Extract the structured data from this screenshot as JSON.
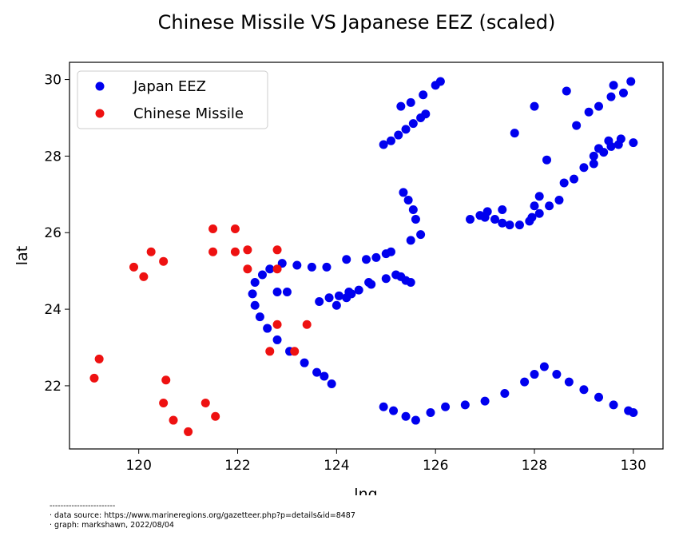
{
  "chart_data": {
    "type": "scatter",
    "title": "Chinese Missile VS Japanese EEZ (scaled)",
    "xlabel": "lng",
    "ylabel": "lat",
    "xlim": [
      118.6,
      130.6
    ],
    "ylim": [
      20.35,
      30.45
    ],
    "xticks": [
      120,
      122,
      124,
      126,
      128,
      130
    ],
    "yticks": [
      22,
      24,
      26,
      28,
      30
    ],
    "legend": {
      "position": "upper-left",
      "entries": [
        "Japan EEZ",
        "Chinese Missile"
      ]
    },
    "colors": {
      "Japan EEZ": "#0000ee",
      "Chinese Missile": "#ee1111"
    },
    "series": [
      {
        "name": "Japan EEZ",
        "points": [
          [
            125.3,
            29.3
          ],
          [
            125.5,
            29.4
          ],
          [
            125.75,
            29.6
          ],
          [
            126.0,
            29.85
          ],
          [
            126.1,
            29.95
          ],
          [
            124.95,
            28.3
          ],
          [
            125.1,
            28.4
          ],
          [
            125.25,
            28.55
          ],
          [
            125.4,
            28.7
          ],
          [
            125.55,
            28.85
          ],
          [
            125.7,
            29.0
          ],
          [
            125.8,
            29.1
          ],
          [
            125.35,
            27.05
          ],
          [
            125.45,
            26.85
          ],
          [
            125.55,
            26.6
          ],
          [
            125.6,
            26.35
          ],
          [
            125.7,
            25.95
          ],
          [
            125.5,
            25.8
          ],
          [
            122.5,
            24.9
          ],
          [
            122.35,
            24.7
          ],
          [
            122.3,
            24.4
          ],
          [
            122.35,
            24.1
          ],
          [
            122.45,
            23.8
          ],
          [
            122.6,
            23.5
          ],
          [
            122.8,
            23.2
          ],
          [
            123.05,
            22.9
          ],
          [
            123.35,
            22.6
          ],
          [
            123.6,
            22.35
          ],
          [
            123.75,
            22.25
          ],
          [
            122.65,
            25.05
          ],
          [
            122.9,
            25.2
          ],
          [
            123.2,
            25.15
          ],
          [
            123.5,
            25.1
          ],
          [
            123.8,
            25.1
          ],
          [
            123.9,
            22.05
          ],
          [
            124.2,
            25.3
          ],
          [
            124.6,
            25.3
          ],
          [
            124.8,
            25.35
          ],
          [
            125.0,
            25.45
          ],
          [
            125.1,
            25.5
          ],
          [
            123.0,
            24.45
          ],
          [
            122.8,
            24.45
          ],
          [
            123.65,
            24.2
          ],
          [
            123.85,
            24.3
          ],
          [
            124.05,
            24.35
          ],
          [
            124.25,
            24.45
          ],
          [
            124.45,
            24.5
          ],
          [
            124.0,
            24.1
          ],
          [
            124.2,
            24.3
          ],
          [
            124.3,
            24.4
          ],
          [
            124.65,
            24.7
          ],
          [
            124.7,
            24.65
          ],
          [
            125.0,
            24.8
          ],
          [
            125.2,
            24.9
          ],
          [
            125.4,
            24.75
          ],
          [
            125.5,
            24.7
          ],
          [
            125.3,
            24.85
          ],
          [
            124.95,
            21.45
          ],
          [
            125.15,
            21.35
          ],
          [
            125.4,
            21.2
          ],
          [
            125.6,
            21.1
          ],
          [
            125.9,
            21.3
          ],
          [
            126.2,
            21.45
          ],
          [
            126.6,
            21.5
          ],
          [
            127.0,
            21.6
          ],
          [
            127.4,
            21.8
          ],
          [
            127.8,
            22.1
          ],
          [
            128.0,
            22.3
          ],
          [
            128.2,
            22.5
          ],
          [
            128.45,
            22.3
          ],
          [
            128.7,
            22.1
          ],
          [
            129.0,
            21.9
          ],
          [
            129.3,
            21.7
          ],
          [
            129.6,
            21.5
          ],
          [
            129.9,
            21.35
          ],
          [
            130.0,
            21.3
          ],
          [
            126.7,
            26.35
          ],
          [
            126.9,
            26.45
          ],
          [
            127.0,
            26.4
          ],
          [
            127.2,
            26.35
          ],
          [
            127.35,
            26.25
          ],
          [
            127.5,
            26.2
          ],
          [
            127.7,
            26.2
          ],
          [
            127.9,
            26.3
          ],
          [
            128.1,
            26.5
          ],
          [
            128.3,
            26.7
          ],
          [
            128.5,
            26.85
          ],
          [
            127.05,
            26.55
          ],
          [
            127.35,
            26.6
          ],
          [
            127.95,
            26.4
          ],
          [
            128.0,
            26.7
          ],
          [
            128.1,
            26.95
          ],
          [
            128.6,
            27.3
          ],
          [
            128.8,
            27.4
          ],
          [
            129.0,
            27.7
          ],
          [
            129.2,
            27.8
          ],
          [
            129.4,
            28.1
          ],
          [
            129.55,
            28.25
          ],
          [
            129.75,
            28.45
          ],
          [
            129.2,
            28.0
          ],
          [
            129.3,
            28.2
          ],
          [
            129.5,
            28.4
          ],
          [
            129.7,
            28.3
          ],
          [
            128.25,
            27.9
          ],
          [
            127.6,
            28.6
          ],
          [
            128.0,
            29.3
          ],
          [
            128.65,
            29.7
          ],
          [
            128.85,
            28.8
          ],
          [
            129.1,
            29.15
          ],
          [
            129.3,
            29.3
          ],
          [
            129.55,
            29.55
          ],
          [
            129.6,
            29.85
          ],
          [
            129.8,
            29.65
          ],
          [
            129.95,
            29.95
          ],
          [
            130.0,
            28.35
          ]
        ]
      },
      {
        "name": "Chinese Missile",
        "points": [
          [
            119.1,
            22.2
          ],
          [
            119.2,
            22.7
          ],
          [
            119.9,
            25.1
          ],
          [
            120.1,
            24.85
          ],
          [
            120.25,
            25.5
          ],
          [
            120.5,
            25.25
          ],
          [
            120.55,
            22.15
          ],
          [
            120.5,
            21.55
          ],
          [
            120.7,
            21.1
          ],
          [
            121.0,
            20.8
          ],
          [
            121.35,
            21.55
          ],
          [
            121.55,
            21.2
          ],
          [
            121.5,
            26.1
          ],
          [
            121.5,
            25.5
          ],
          [
            121.95,
            26.1
          ],
          [
            121.95,
            25.5
          ],
          [
            122.2,
            25.55
          ],
          [
            122.2,
            25.05
          ],
          [
            122.8,
            25.55
          ],
          [
            122.8,
            25.05
          ],
          [
            122.8,
            23.6
          ],
          [
            123.4,
            23.6
          ],
          [
            122.65,
            22.9
          ],
          [
            123.15,
            22.9
          ]
        ]
      }
    ]
  },
  "footer": {
    "rule": "------------------------",
    "source": "·   data source: https://www.marineregions.org/gazetteer.php?p=details&id=8487",
    "credit": "·   graph: markshawn, 2022/08/04"
  }
}
